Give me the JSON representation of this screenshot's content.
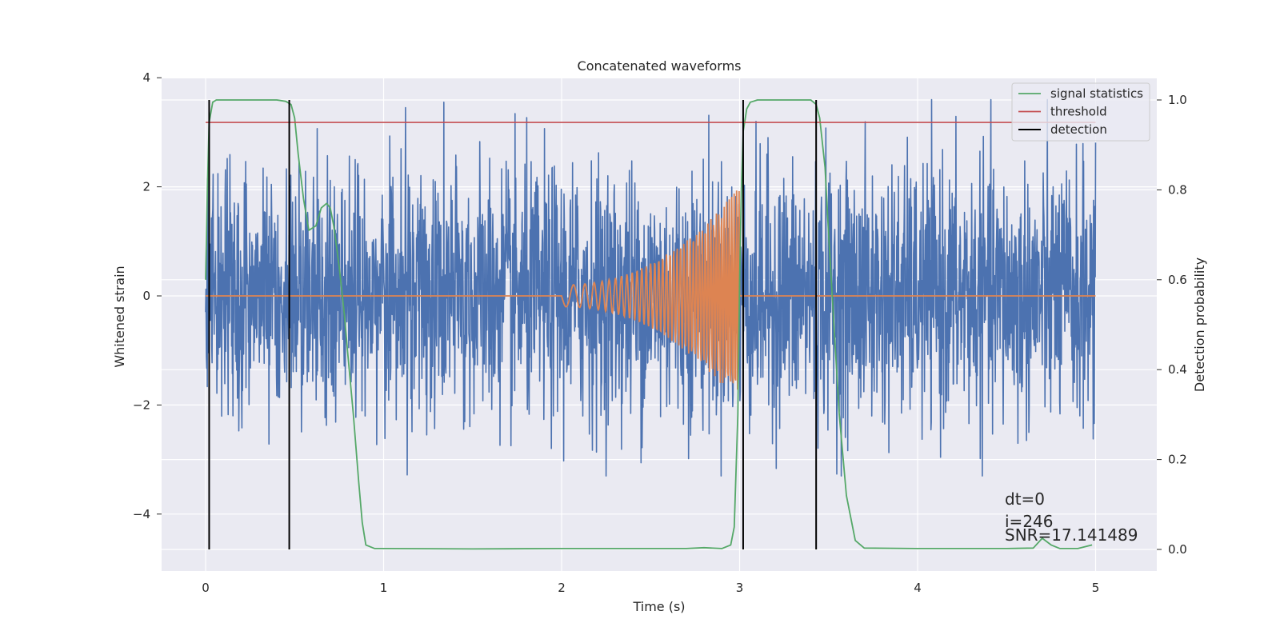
{
  "chart_data": {
    "type": "line",
    "title": "Concatenated waveforms",
    "xlabel": "Time (s)",
    "ylabel": "Whitened strain",
    "y2label": "Detection probability",
    "xlim": [
      -0.25,
      5.35
    ],
    "ylim": [
      -5.0,
      4.0
    ],
    "y2lim": [
      -0.05,
      1.05
    ],
    "xticks": [
      0,
      1,
      2,
      3,
      4,
      5
    ],
    "yticks": [
      -4,
      -2,
      0,
      2,
      4
    ],
    "y2ticks": [
      0.0,
      0.2,
      0.4,
      0.6,
      0.8,
      1.0
    ],
    "xtick_labels": [
      "0",
      "1",
      "2",
      "3",
      "4",
      "5"
    ],
    "ytick_labels": [
      "−4",
      "−2",
      "0",
      "2",
      "4"
    ],
    "y2tick_labels": [
      "0.0",
      "0.2",
      "0.4",
      "0.6",
      "0.8",
      "1.0"
    ],
    "grid": true,
    "legend_position": "top-right",
    "colors": {
      "background": "#eaeaf2",
      "grid": "#ffffff",
      "strain": "#4c72b0",
      "template": "#dd8452",
      "signal_statistics": "#55a868",
      "threshold": "#c44e52",
      "detection": "#000000"
    },
    "series": [
      {
        "name": "signal statistics",
        "axis": "right",
        "x": [
          0.0,
          0.01,
          0.02,
          0.04,
          0.06,
          0.1,
          0.2,
          0.3,
          0.4,
          0.45,
          0.48,
          0.5,
          0.52,
          0.55,
          0.58,
          0.62,
          0.65,
          0.68,
          0.7,
          0.72,
          0.75,
          0.78,
          0.8,
          0.83,
          0.86,
          0.88,
          0.9,
          0.95,
          1.0,
          1.5,
          2.0,
          2.5,
          2.7,
          2.8,
          2.9,
          2.95,
          2.97,
          2.99,
          3.0,
          3.01,
          3.02,
          3.04,
          3.06,
          3.1,
          3.2,
          3.3,
          3.4,
          3.43,
          3.45,
          3.48,
          3.5,
          3.53,
          3.56,
          3.6,
          3.65,
          3.7,
          4.0,
          4.5,
          4.65,
          4.7,
          4.75,
          4.8,
          4.9,
          4.98
        ],
        "y": [
          0.6,
          0.8,
          0.95,
          0.995,
          1.0,
          1.0,
          1.0,
          1.0,
          1.0,
          0.997,
          0.99,
          0.96,
          0.88,
          0.78,
          0.71,
          0.72,
          0.76,
          0.77,
          0.76,
          0.72,
          0.63,
          0.52,
          0.43,
          0.3,
          0.15,
          0.06,
          0.01,
          0.002,
          0.002,
          0.001,
          0.002,
          0.002,
          0.002,
          0.004,
          0.002,
          0.01,
          0.05,
          0.3,
          0.6,
          0.8,
          0.93,
          0.98,
          0.995,
          1.0,
          1.0,
          1.0,
          1.0,
          0.99,
          0.96,
          0.85,
          0.7,
          0.5,
          0.3,
          0.12,
          0.02,
          0.003,
          0.002,
          0.002,
          0.003,
          0.025,
          0.01,
          0.002,
          0.002,
          0.01
        ]
      },
      {
        "name": "threshold",
        "axis": "right",
        "x": [
          0.0,
          5.0
        ],
        "y": [
          0.95,
          0.95
        ]
      },
      {
        "name": "detection",
        "axis": "right",
        "vlines": [
          0.02,
          0.47,
          3.02,
          3.43
        ],
        "ymin": 0.0,
        "ymax": 1.0
      },
      {
        "name": "",
        "axis": "left",
        "kind": "template-chirp",
        "t_start": 2.0,
        "t_end": 3.0,
        "amp_start": 0.2,
        "amp_end": 2.0,
        "f_start": 9,
        "f_end": 75
      },
      {
        "name": "",
        "axis": "left",
        "kind": "noise",
        "t_start": 0.0,
        "t_end": 5.0,
        "max": 3.6,
        "min": -3.3,
        "typical": 1.3
      }
    ],
    "annotations": [
      "dt=0",
      "i=246",
      "SNR=17.141489"
    ]
  }
}
